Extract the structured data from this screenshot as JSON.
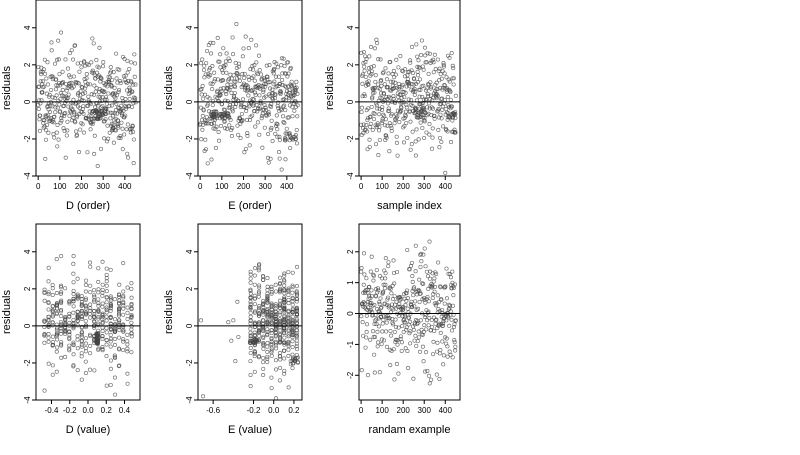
{
  "chart_data": [
    {
      "type": "scatter",
      "id": "d-order",
      "xlabel": "D (order)",
      "ylabel": "residuals",
      "xlim": [
        -10,
        470
      ],
      "ylim": [
        -4,
        5.5
      ],
      "xticks": [
        0,
        100,
        200,
        300,
        400
      ],
      "xtick_labels": [
        "0",
        "100",
        "200",
        "300",
        "400"
      ],
      "yticks": [
        -4,
        -2,
        0,
        2,
        4
      ],
      "ytick_labels": [
        "-4",
        "-2",
        "0",
        "2",
        "4"
      ],
      "hline": 0,
      "points": {
        "n": 440,
        "x_range": [
          0,
          450
        ],
        "style": "random",
        "clusters": [
          {
            "x": 280,
            "y": -0.7,
            "spread_x": 35,
            "spread_y": 0.25,
            "n": 40
          },
          {
            "x": 350,
            "y": -1.3,
            "spread_x": 20,
            "spread_y": 0.3,
            "n": 12
          }
        ],
        "seed": 11
      }
    },
    {
      "type": "scatter",
      "id": "e-order",
      "xlabel": "E (order)",
      "ylabel": "residuals",
      "xlim": [
        -10,
        470
      ],
      "ylim": [
        -4,
        5.5
      ],
      "xticks": [
        0,
        100,
        200,
        300,
        400
      ],
      "xtick_labels": [
        "0",
        "100",
        "200",
        "300",
        "400"
      ],
      "yticks": [
        -4,
        -2,
        0,
        2,
        4
      ],
      "ytick_labels": [
        "-4",
        "-2",
        "0",
        "2",
        "4"
      ],
      "hline": 0,
      "points": {
        "n": 440,
        "x_range": [
          0,
          450
        ],
        "style": "random",
        "clusters": [
          {
            "x": 90,
            "y": -0.75,
            "spread_x": 45,
            "spread_y": 0.15,
            "n": 40
          },
          {
            "x": 400,
            "y": -1.9,
            "spread_x": 45,
            "spread_y": 0.2,
            "n": 20
          }
        ],
        "seed": 23
      }
    },
    {
      "type": "scatter",
      "id": "sample-index",
      "xlabel": "sample index",
      "ylabel": "residuals",
      "xlim": [
        -10,
        470
      ],
      "ylim": [
        -4,
        5.5
      ],
      "xticks": [
        0,
        100,
        200,
        300,
        400
      ],
      "xtick_labels": [
        "0",
        "100",
        "200",
        "300",
        "400"
      ],
      "yticks": [
        -4,
        -2,
        0,
        2,
        4
      ],
      "ytick_labels": [
        "-4",
        "-2",
        "0",
        "2",
        "4"
      ],
      "hline": 0,
      "points": {
        "n": 440,
        "x_range": [
          0,
          450
        ],
        "style": "random",
        "clusters": [
          {
            "x": 280,
            "y": -0.6,
            "spread_x": 25,
            "spread_y": 0.3,
            "n": 20
          },
          {
            "x": 430,
            "y": -0.8,
            "spread_x": 20,
            "spread_y": 0.2,
            "n": 12
          }
        ],
        "seed": 37
      }
    },
    {
      "type": "scatter",
      "id": "d-value",
      "xlabel": "D (value)",
      "ylabel": "residuals",
      "xlim": [
        -0.57,
        0.57
      ],
      "ylim": [
        -4,
        5.5
      ],
      "xticks": [
        -0.4,
        -0.2,
        0.0,
        0.2,
        0.4
      ],
      "xtick_labels": [
        "-0.4",
        "-0.2",
        "0.0",
        "0.2",
        "0.4"
      ],
      "yticks": [
        -4,
        -2,
        0,
        2,
        4
      ],
      "ytick_labels": [
        "-4",
        "-2",
        "0",
        "2",
        "4"
      ],
      "hline": 0,
      "points": {
        "n": 440,
        "x_range": [
          -0.5,
          0.5
        ],
        "style": "columns",
        "columns": 22,
        "clusters": [
          {
            "x": 0.1,
            "y": -0.7,
            "spread_x": 0.01,
            "spread_y": 0.3,
            "n": 40
          }
        ],
        "seed": 53
      }
    },
    {
      "type": "scatter",
      "id": "e-value",
      "xlabel": "E (value)",
      "ylabel": "residuals",
      "xlim": [
        -0.75,
        0.28
      ],
      "ylim": [
        -4,
        5.5
      ],
      "xticks": [
        -0.6,
        -0.2,
        0.0,
        0.2
      ],
      "xtick_labels": [
        "-0.6",
        "-0.2",
        "0.0",
        "0.2"
      ],
      "yticks": [
        -4,
        -2,
        0,
        2,
        4
      ],
      "ytick_labels": [
        "-4",
        "-2",
        "0",
        "2",
        "4"
      ],
      "hline": 0,
      "points": {
        "n": 420,
        "x_range": [
          -0.25,
          0.25
        ],
        "style": "columns",
        "columns": 12,
        "extra": [
          {
            "x": -0.72,
            "y": 0.3
          },
          {
            "x": -0.7,
            "y": -3.8
          },
          {
            "x": -0.45,
            "y": 0.2
          },
          {
            "x": -0.4,
            "y": 0.3
          },
          {
            "x": -0.42,
            "y": -0.8
          },
          {
            "x": -0.35,
            "y": -0.6
          },
          {
            "x": -0.38,
            "y": -1.9
          },
          {
            "x": -0.36,
            "y": 1.3
          }
        ],
        "clusters": [
          {
            "x": -0.2,
            "y": -0.8,
            "spread_x": 0.04,
            "spread_y": 0.12,
            "n": 16
          },
          {
            "x": 0.2,
            "y": -1.9,
            "spread_x": 0.04,
            "spread_y": 0.2,
            "n": 14
          }
        ],
        "seed": 71
      }
    },
    {
      "type": "scatter",
      "id": "random-example",
      "xlabel": "randam example",
      "ylabel": "residuals",
      "xlim": [
        -10,
        470
      ],
      "ylim": [
        -2.8,
        2.9
      ],
      "xticks": [
        0,
        100,
        200,
        300,
        400
      ],
      "xtick_labels": [
        "0",
        "100",
        "200",
        "300",
        "400"
      ],
      "yticks": [
        -2,
        -1,
        0,
        1,
        2
      ],
      "ytick_labels": [
        "-2",
        "-1",
        "0",
        "1",
        "2"
      ],
      "hline": 0,
      "points": {
        "n": 430,
        "x_range": [
          0,
          450
        ],
        "style": "normal",
        "sd": 0.95,
        "clusters": [],
        "seed": 97
      }
    }
  ],
  "colors": {
    "point": "#444444",
    "axis": "#000000",
    "background": "#ffffff"
  }
}
